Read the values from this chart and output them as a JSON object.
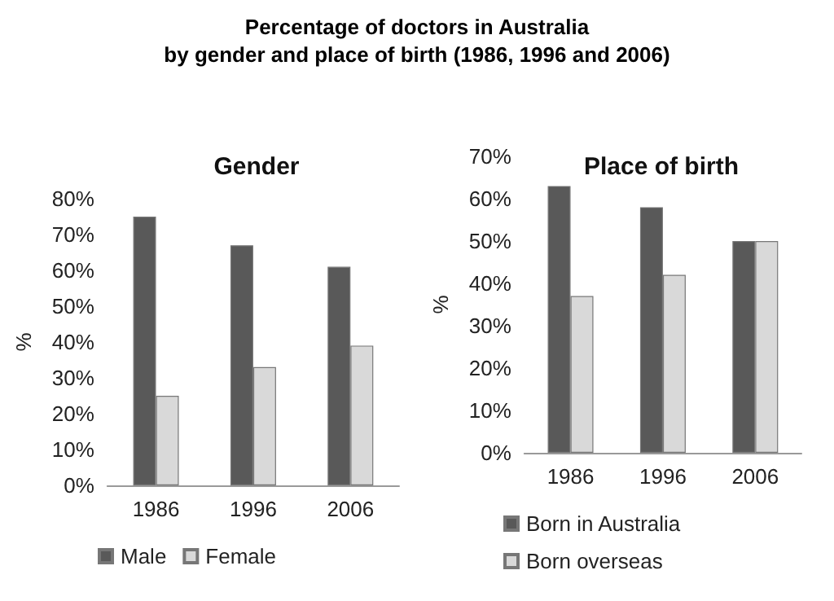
{
  "chart_data": [
    {
      "type": "bar",
      "title": "Percentage of doctors in Australia\nby gender and place of birth (1986, 1996 and 2006)",
      "subtitle": "Gender",
      "ylabel": "%",
      "categories": [
        "1986",
        "1996",
        "2006"
      ],
      "series": [
        {
          "name": "Male",
          "color": "#595959",
          "values": [
            75,
            67,
            61
          ]
        },
        {
          "name": "Female",
          "color": "#d9d9d9",
          "values": [
            25,
            33,
            39
          ]
        }
      ],
      "ylim": [
        0,
        80
      ],
      "yticks": [
        {
          "value": 0,
          "label": "0%"
        },
        {
          "value": 10,
          "label": "10%"
        },
        {
          "value": 20,
          "label": "20%"
        },
        {
          "value": 30,
          "label": "30%"
        },
        {
          "value": 40,
          "label": "40%"
        },
        {
          "value": 50,
          "label": "50%"
        },
        {
          "value": 60,
          "label": "60%"
        },
        {
          "value": 70,
          "label": "70%"
        },
        {
          "value": 80,
          "label": "80%"
        }
      ],
      "grid": false,
      "legend": "bottom"
    },
    {
      "type": "bar",
      "title": "Place of birth",
      "ylabel": "%",
      "categories": [
        "1986",
        "1996",
        "2006"
      ],
      "series": [
        {
          "name": "Born in Australia",
          "color": "#595959",
          "values": [
            63,
            58,
            50
          ]
        },
        {
          "name": "Born overseas",
          "color": "#d9d9d9",
          "values": [
            37,
            42,
            50
          ]
        }
      ],
      "ylim": [
        0,
        70
      ],
      "yticks": [
        {
          "value": 0,
          "label": "0%"
        },
        {
          "value": 10,
          "label": "10%"
        },
        {
          "value": 20,
          "label": "20%"
        },
        {
          "value": 30,
          "label": "30%"
        },
        {
          "value": 40,
          "label": "40%"
        },
        {
          "value": 50,
          "label": "50%"
        },
        {
          "value": 60,
          "label": "60%"
        },
        {
          "value": 70,
          "label": "70%"
        }
      ],
      "grid": false,
      "legend": "bottom left"
    }
  ]
}
